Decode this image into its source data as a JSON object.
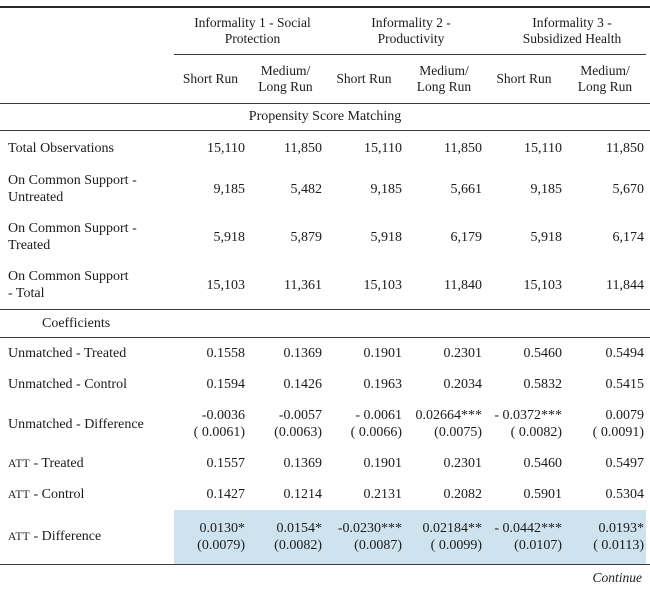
{
  "table": {
    "groups": [
      "Informality 1 - Social\nProtection",
      "Informality 2 -\nProductivity",
      "Informality 3 -\nSubsidized Health"
    ],
    "sub_columns": [
      "Short Run",
      "Medium/\nLong Run",
      "Short Run",
      "Medium/\nLong Run",
      "Short Run",
      "Medium/\nLong Run"
    ],
    "section_psm": "Propensity Score Matching",
    "section_coef": "Coefficients",
    "continue_label": "Continue",
    "highlight_color": "#cfe3ef",
    "psm_rows": [
      {
        "label": "Total Observations",
        "values": [
          "15,110",
          "11,850",
          "15,110",
          "11,850",
          "15,110",
          "11,850"
        ]
      },
      {
        "label": "On Common Support -\nUntreated",
        "values": [
          "9,185",
          "5,482",
          "9,185",
          "5,661",
          "9,185",
          "5,670"
        ]
      },
      {
        "label": "On Common Support -\nTreated",
        "values": [
          "5,918",
          "5,879",
          "5,918",
          "6,179",
          "5,918",
          "6,174"
        ]
      },
      {
        "label": "On Common Support\n- Total",
        "values": [
          "15,103",
          "11,361",
          "15,103",
          "11,840",
          "15,103",
          "11,844"
        ]
      }
    ],
    "coef_rows": [
      {
        "label": "Unmatched - Treated",
        "values": [
          "0.1558",
          "0.1369",
          "0.1901",
          "0.2301",
          "0.5460",
          "0.5494"
        ]
      },
      {
        "label": "Unmatched - Control",
        "values": [
          "0.1594",
          "0.1426",
          "0.1963",
          "0.2034",
          "0.5832",
          "0.5415"
        ]
      },
      {
        "label": "Unmatched - Difference",
        "values": [
          "-0.0036",
          "-0.0057",
          "- 0.0061",
          "0.02664***",
          "- 0.0372***",
          "0.0079"
        ],
        "se": [
          "( 0.0061)",
          "(0.0063)",
          "( 0.0066)",
          "(0.0075)",
          "( 0.0082)",
          "( 0.0091)"
        ]
      },
      {
        "label_sc": "ATT",
        "label": " - Treated",
        "values": [
          "0.1557",
          "0.1369",
          "0.1901",
          "0.2301",
          "0.5460",
          "0.5497"
        ]
      },
      {
        "label_sc": "ATT",
        "label": " - Control",
        "values": [
          "0.1427",
          "0.1214",
          "0.2131",
          "0.2082",
          "0.5901",
          "0.5304"
        ]
      },
      {
        "label_sc": "ATT",
        "label": " - Difference",
        "highlight": true,
        "values": [
          "0.0130*",
          "0.0154*",
          "-0.0230***",
          "0.02184**",
          "- 0.0442***",
          "0.0193*"
        ],
        "se": [
          "(0.0079)",
          "(0.0082)",
          "(0.0087)",
          "( 0.0099)",
          "(0.0107)",
          "( 0.0113)"
        ]
      }
    ]
  }
}
